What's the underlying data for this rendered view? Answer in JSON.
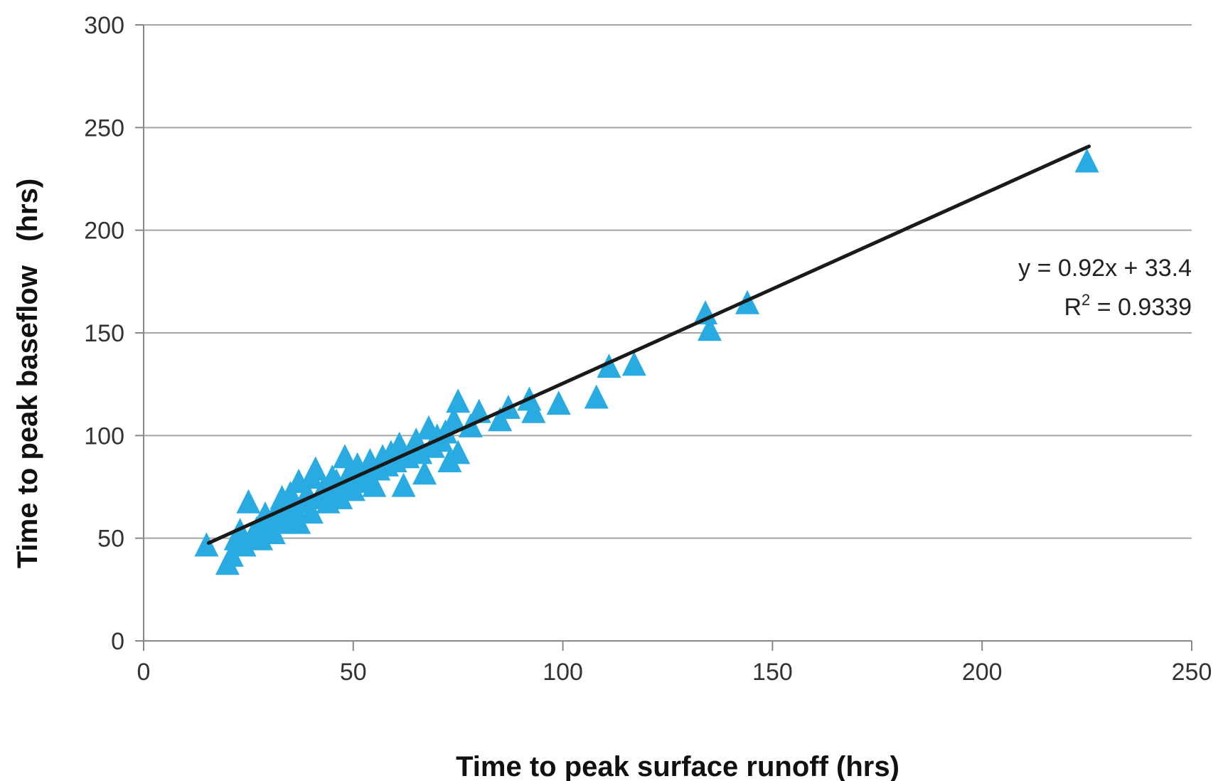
{
  "chart_data": {
    "type": "scatter",
    "xlabel": "Time to peak surface runoff (hrs)",
    "ylabel": "Time to peak baseflow   (hrs)",
    "xlim": [
      0,
      250
    ],
    "ylim": [
      0,
      300
    ],
    "xticks": [
      0,
      50,
      100,
      150,
      200,
      250
    ],
    "yticks": [
      0,
      50,
      100,
      150,
      200,
      250,
      300
    ],
    "grid": "horizontal",
    "marker_color": "#29abe2",
    "line_color": "#1a1a1a",
    "trendline": {
      "slope": 0.92,
      "intercept": 33.4,
      "x_range": [
        15.5,
        225.5
      ]
    },
    "annotation": {
      "equation": "y = 0.92x + 33.4",
      "r2_prefix": "R",
      "r2_sup": "2",
      "r2_value": " = 0.9339"
    },
    "series": [
      {
        "marker": "triangle",
        "points": [
          [
            15,
            47
          ],
          [
            20,
            38
          ],
          [
            21,
            42
          ],
          [
            22,
            50
          ],
          [
            23,
            54
          ],
          [
            24,
            47
          ],
          [
            25,
            68
          ],
          [
            26,
            52
          ],
          [
            27,
            55
          ],
          [
            28,
            58
          ],
          [
            28,
            50
          ],
          [
            29,
            62
          ],
          [
            30,
            55
          ],
          [
            31,
            53
          ],
          [
            31,
            60
          ],
          [
            32,
            65
          ],
          [
            33,
            58
          ],
          [
            33,
            70
          ],
          [
            34,
            62
          ],
          [
            35,
            72
          ],
          [
            35,
            60
          ],
          [
            36,
            65
          ],
          [
            37,
            78
          ],
          [
            37,
            58
          ],
          [
            38,
            68
          ],
          [
            39,
            72
          ],
          [
            40,
            80
          ],
          [
            40,
            63
          ],
          [
            41,
            84
          ],
          [
            42,
            70
          ],
          [
            43,
            75
          ],
          [
            44,
            68
          ],
          [
            45,
            80
          ],
          [
            45,
            72
          ],
          [
            46,
            78
          ],
          [
            47,
            70
          ],
          [
            48,
            90
          ],
          [
            48,
            76
          ],
          [
            49,
            82
          ],
          [
            50,
            74
          ],
          [
            51,
            86
          ],
          [
            52,
            78
          ],
          [
            53,
            82
          ],
          [
            54,
            88
          ],
          [
            55,
            76
          ],
          [
            56,
            84
          ],
          [
            57,
            90
          ],
          [
            58,
            86
          ],
          [
            59,
            92
          ],
          [
            60,
            88
          ],
          [
            61,
            96
          ],
          [
            62,
            76
          ],
          [
            63,
            90
          ],
          [
            64,
            94
          ],
          [
            65,
            98
          ],
          [
            66,
            92
          ],
          [
            67,
            82
          ],
          [
            68,
            104
          ],
          [
            69,
            95
          ],
          [
            70,
            100
          ],
          [
            71,
            98
          ],
          [
            72,
            102
          ],
          [
            73,
            88
          ],
          [
            74,
            108
          ],
          [
            75,
            117
          ],
          [
            75,
            92
          ],
          [
            78,
            105
          ],
          [
            80,
            112
          ],
          [
            85,
            108
          ],
          [
            87,
            114
          ],
          [
            92,
            118
          ],
          [
            93,
            112
          ],
          [
            99,
            116
          ],
          [
            108,
            119
          ],
          [
            111,
            134
          ],
          [
            117,
            135
          ],
          [
            134,
            160
          ],
          [
            135,
            152
          ],
          [
            144,
            165
          ],
          [
            225,
            234
          ]
        ]
      }
    ]
  }
}
